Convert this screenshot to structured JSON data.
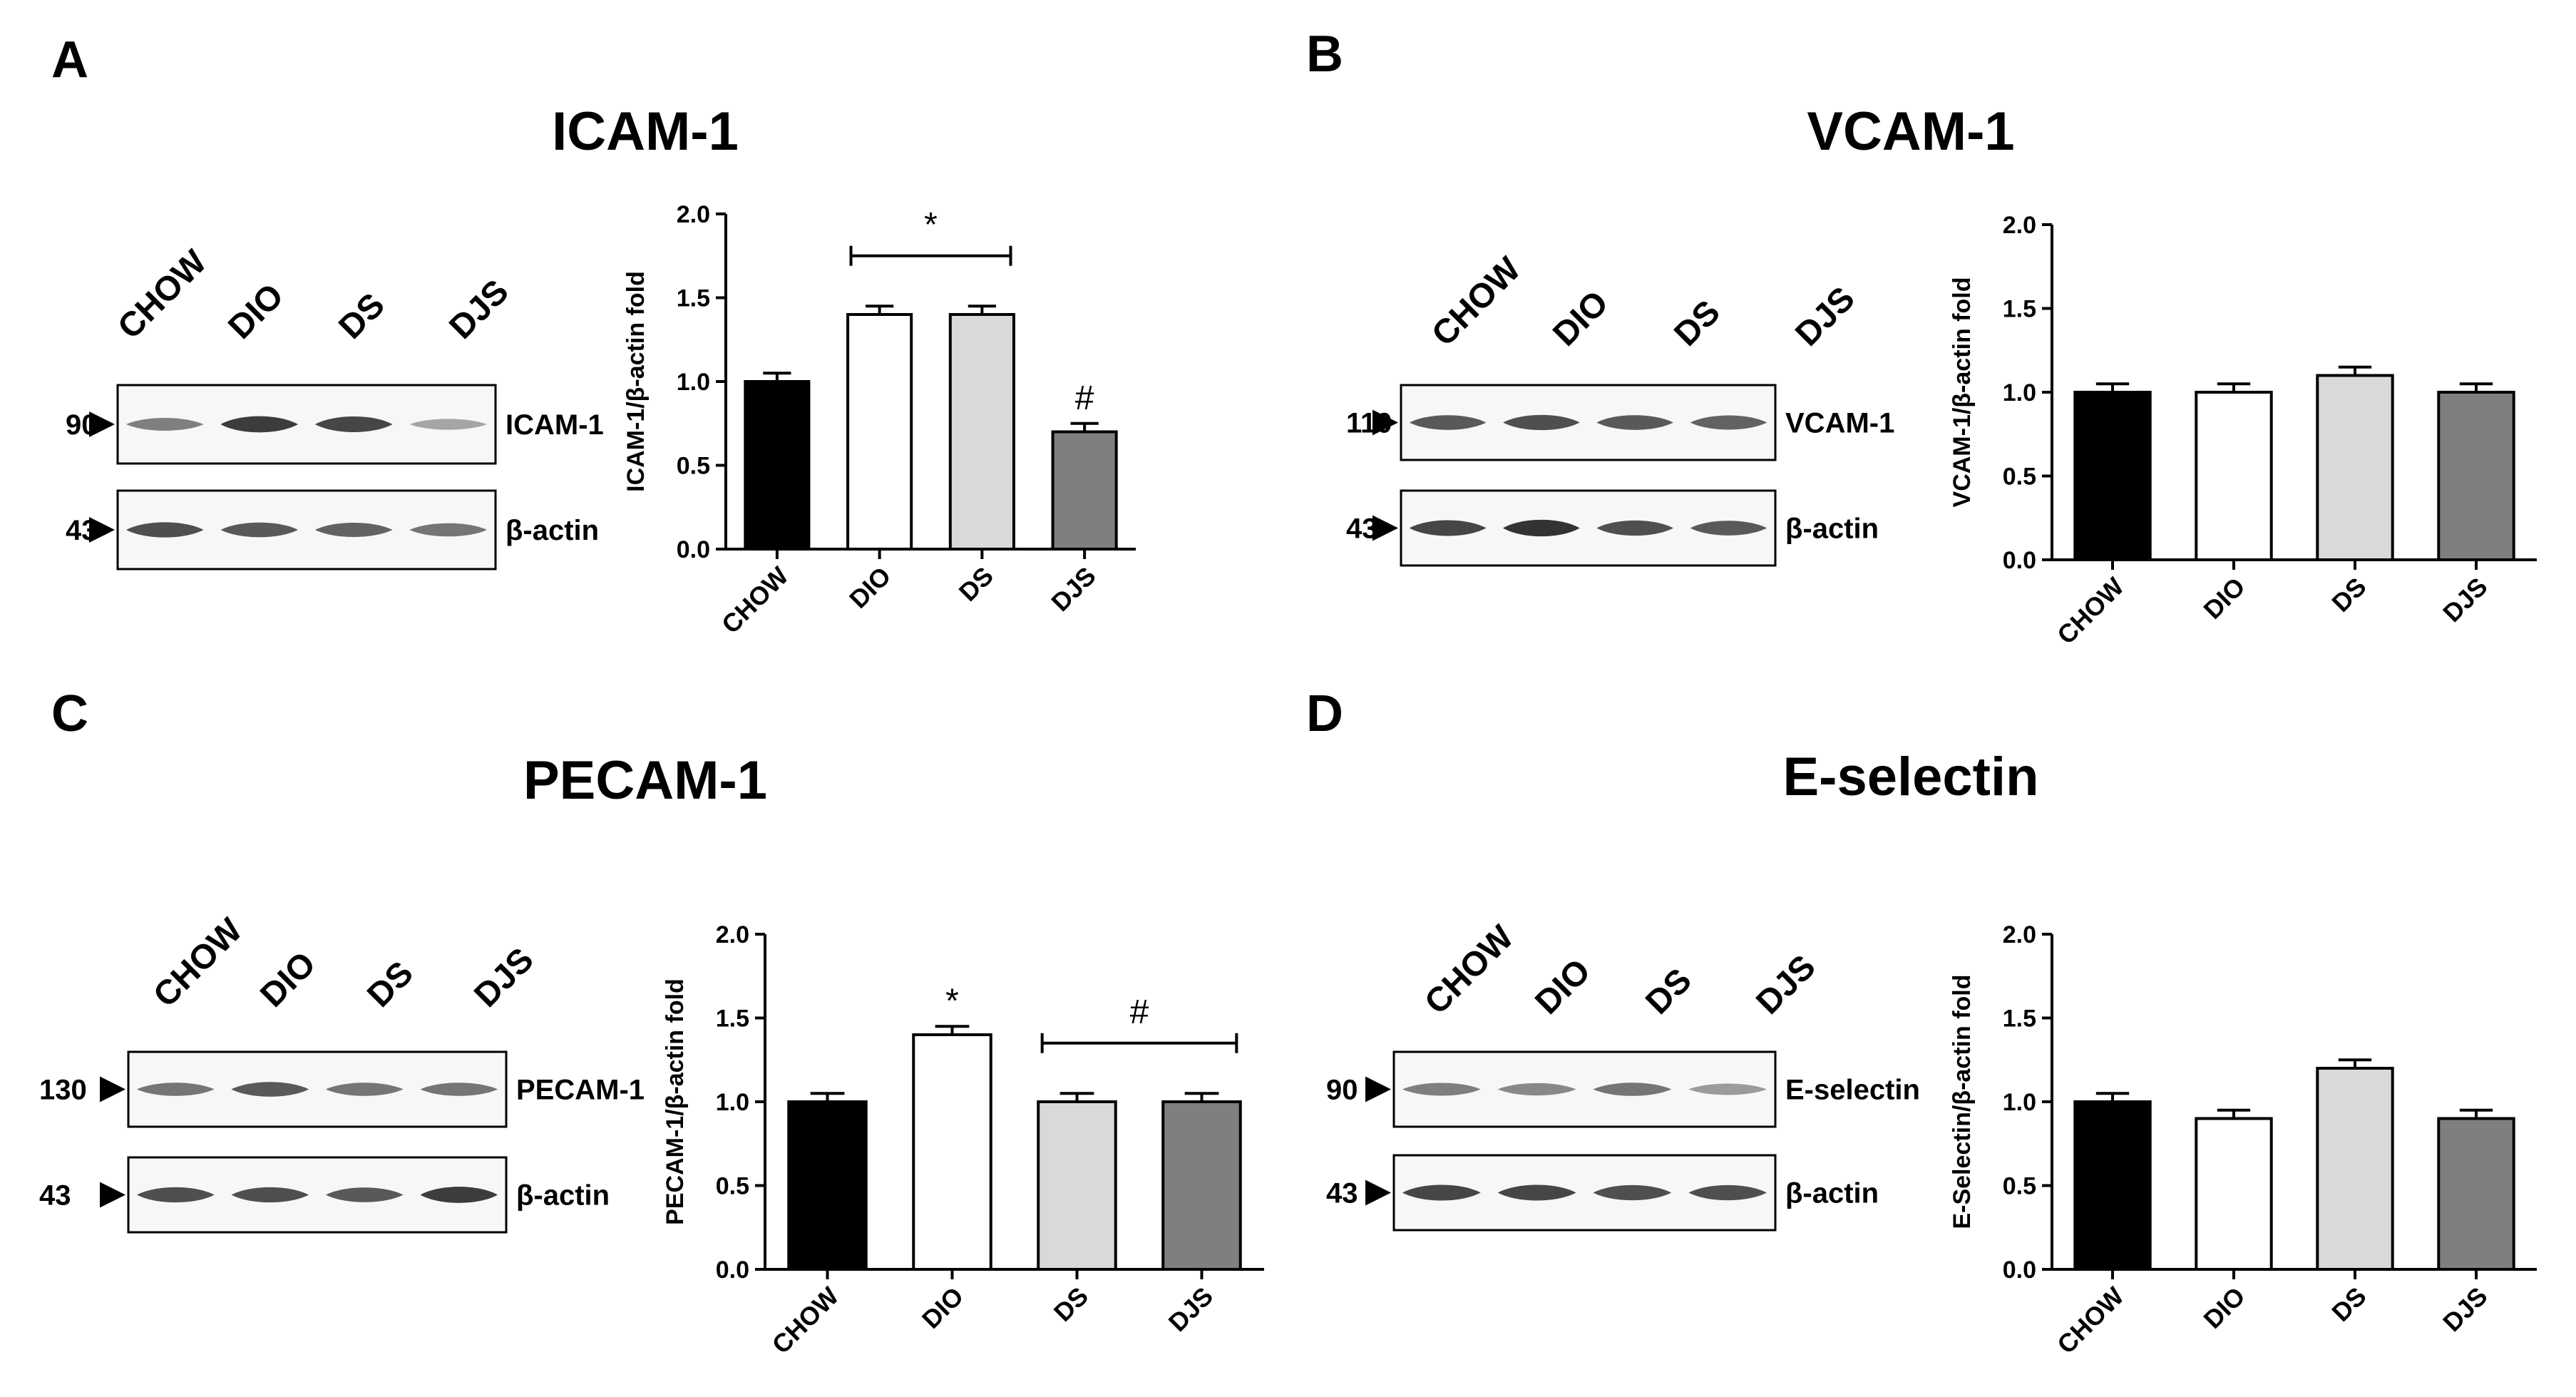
{
  "panels": [
    {
      "letter": "A",
      "title": "ICAM-1",
      "blot": {
        "lanes": [
          "CHOW",
          "DIO",
          "DS",
          "DJS"
        ],
        "target": {
          "label": "ICAM-1",
          "mw": "90",
          "intensity": [
            0.55,
            0.9,
            0.85,
            0.35
          ]
        },
        "actin": {
          "label": "β-actin",
          "mw": "43",
          "intensity": [
            0.8,
            0.75,
            0.7,
            0.6
          ]
        }
      }
    },
    {
      "letter": "B",
      "title": "VCAM-1",
      "blot": {
        "lanes": [
          "CHOW",
          "DIO",
          "DS",
          "DJS"
        ],
        "target": {
          "label": "VCAM-1",
          "mw": "110",
          "intensity": [
            0.75,
            0.8,
            0.75,
            0.7
          ]
        },
        "actin": {
          "label": "β-actin",
          "mw": "43",
          "intensity": [
            0.85,
            0.95,
            0.8,
            0.75
          ]
        }
      }
    },
    {
      "letter": "C",
      "title": "PECAM-1",
      "blot": {
        "lanes": [
          "CHOW",
          "DIO",
          "DS",
          "DJS"
        ],
        "target": {
          "label": "PECAM-1",
          "mw": "130",
          "intensity": [
            0.6,
            0.75,
            0.6,
            0.6
          ]
        },
        "actin": {
          "label": "β-actin",
          "mw": "43",
          "intensity": [
            0.8,
            0.8,
            0.75,
            0.9
          ]
        }
      }
    },
    {
      "letter": "D",
      "title": "E-selectin",
      "blot": {
        "lanes": [
          "CHOW",
          "DIO",
          "DS",
          "DJS"
        ],
        "target": {
          "label": "E-selectin",
          "mw": "90",
          "intensity": [
            0.55,
            0.5,
            0.6,
            0.4
          ]
        },
        "actin": {
          "label": "β-actin",
          "mw": "43",
          "intensity": [
            0.85,
            0.85,
            0.8,
            0.8
          ]
        }
      }
    }
  ],
  "bar_colors": [
    "#000000",
    "#ffffff",
    "#d9d9d9",
    "#7f7f7f"
  ],
  "chart_data": [
    {
      "type": "bar",
      "categories": [
        "CHOW",
        "DIO",
        "DS",
        "DJS"
      ],
      "values": [
        1.0,
        1.4,
        1.4,
        0.7
      ],
      "errors": [
        0.05,
        0.05,
        0.05,
        0.05
      ],
      "ylabel": "ICAM-1/β-actin fold",
      "ylim": [
        0,
        2.0
      ],
      "yticks": [
        "0.0",
        "0.5",
        "1.0",
        "1.5",
        "2.0"
      ],
      "annotations": [
        {
          "text": "*",
          "type": "bracket",
          "from": 1,
          "to": 2
        },
        {
          "text": "#",
          "type": "above",
          "at": 3
        }
      ]
    },
    {
      "type": "bar",
      "categories": [
        "CHOW",
        "DIO",
        "DS",
        "DJS"
      ],
      "values": [
        1.0,
        1.0,
        1.1,
        1.0
      ],
      "errors": [
        0.05,
        0.05,
        0.05,
        0.05
      ],
      "ylabel": "VCAM-1/β-actin fold",
      "ylim": [
        0,
        2.0
      ],
      "yticks": [
        "0.0",
        "0.5",
        "1.0",
        "1.5",
        "2.0"
      ],
      "annotations": []
    },
    {
      "type": "bar",
      "categories": [
        "CHOW",
        "DIO",
        "DS",
        "DJS"
      ],
      "values": [
        1.0,
        1.4,
        1.0,
        1.0
      ],
      "errors": [
        0.05,
        0.05,
        0.05,
        0.05
      ],
      "ylabel": "PECAM-1/β-actin fold",
      "ylim": [
        0,
        2.0
      ],
      "yticks": [
        "0.0",
        "0.5",
        "1.0",
        "1.5",
        "2.0"
      ],
      "annotations": [
        {
          "text": "*",
          "type": "above",
          "at": 1
        },
        {
          "text": "#",
          "type": "bracket",
          "from": 2,
          "to": 3
        }
      ]
    },
    {
      "type": "bar",
      "categories": [
        "CHOW",
        "DIO",
        "DS",
        "DJS"
      ],
      "values": [
        1.0,
        0.9,
        1.2,
        0.9
      ],
      "errors": [
        0.05,
        0.05,
        0.05,
        0.05
      ],
      "ylabel": "E-Selectin/β-actin fold",
      "ylim": [
        0,
        2.0
      ],
      "yticks": [
        "0.0",
        "0.5",
        "1.0",
        "1.5",
        "2.0"
      ],
      "annotations": []
    }
  ]
}
